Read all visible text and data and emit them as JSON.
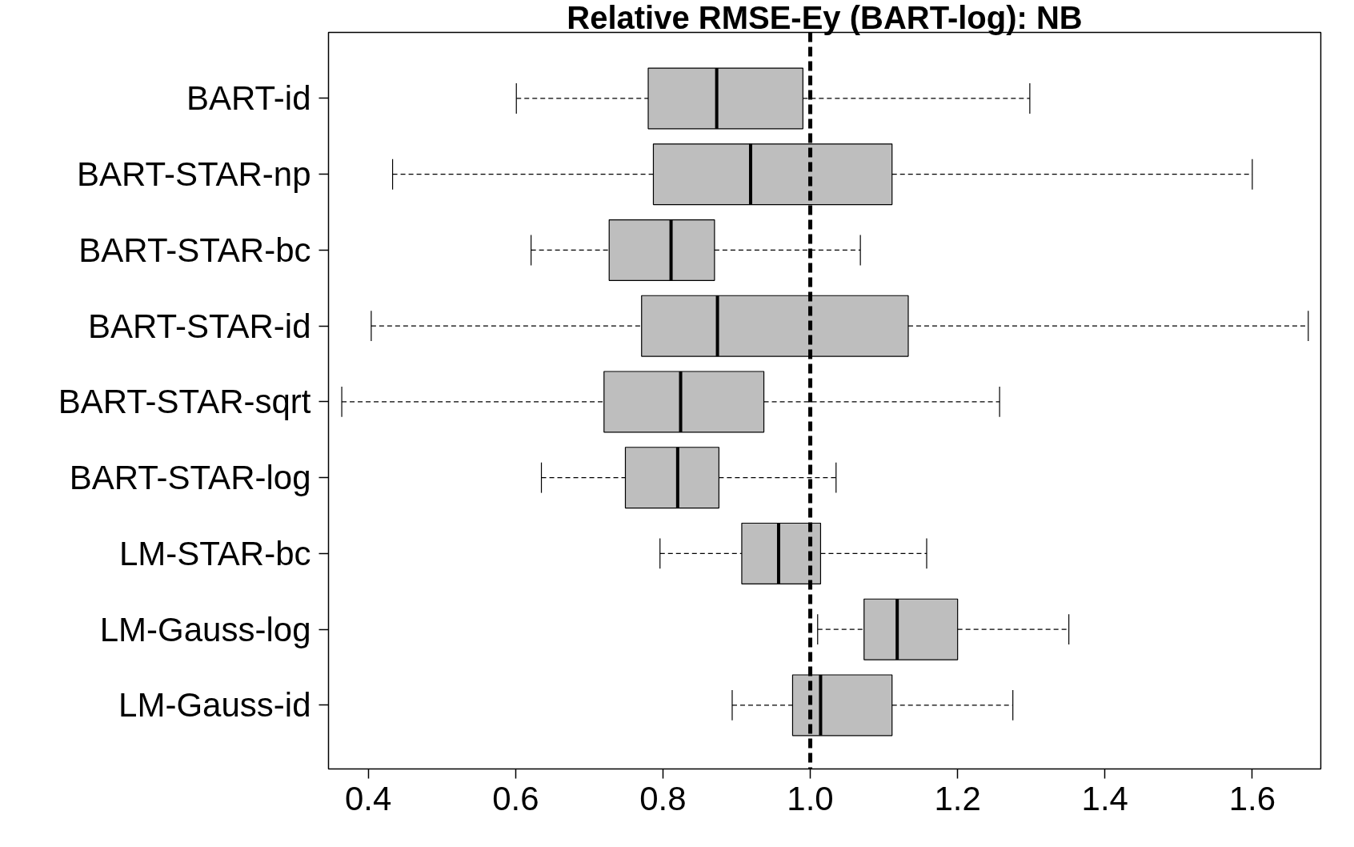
{
  "chart_data": {
    "type": "box",
    "title": "Relative RMSE-Ey (BART-log): NB",
    "orientation": "horizontal",
    "categories": [
      "BART-id",
      "BART-STAR-np",
      "BART-STAR-bc",
      "BART-STAR-id",
      "BART-STAR-sqrt",
      "BART-STAR-log",
      "LM-STAR-bc",
      "LM-Gauss-log",
      "LM-Gauss-id"
    ],
    "boxes": [
      {
        "low": 0.601,
        "q1": 0.78,
        "median": 0.873,
        "q3": 0.99,
        "high": 1.298
      },
      {
        "low": 0.433,
        "q1": 0.787,
        "median": 0.919,
        "q3": 1.111,
        "high": 1.6
      },
      {
        "low": 0.621,
        "q1": 0.727,
        "median": 0.811,
        "q3": 0.87,
        "high": 1.068
      },
      {
        "low": 0.404,
        "q1": 0.771,
        "median": 0.874,
        "q3": 1.133,
        "high": 1.676
      },
      {
        "low": 0.364,
        "q1": 0.72,
        "median": 0.824,
        "q3": 0.937,
        "high": 1.257
      },
      {
        "low": 0.635,
        "q1": 0.749,
        "median": 0.82,
        "q3": 0.876,
        "high": 1.035
      },
      {
        "low": 0.796,
        "q1": 0.907,
        "median": 0.957,
        "q3": 1.014,
        "high": 1.158
      },
      {
        "low": 1.01,
        "q1": 1.073,
        "median": 1.118,
        "q3": 1.2,
        "high": 1.351
      },
      {
        "low": 0.894,
        "q1": 0.976,
        "median": 1.014,
        "q3": 1.111,
        "high": 1.275
      }
    ],
    "color": "#bebebe",
    "xlim": [
      0.346,
      1.693
    ],
    "xticks": [
      {
        "value": 0.4,
        "label": "0.4"
      },
      {
        "value": 0.6,
        "label": "0.6"
      },
      {
        "value": 0.8,
        "label": "0.8"
      },
      {
        "value": 1.0,
        "label": "1.0"
      },
      {
        "value": 1.2,
        "label": "1.2"
      },
      {
        "value": 1.4,
        "label": "1.4"
      },
      {
        "value": 1.6,
        "label": "1.6"
      }
    ],
    "ref_lines": [
      {
        "axis": "x",
        "value": 1.0,
        "label": null,
        "line_style": "dashed",
        "color": "#000000"
      }
    ],
    "grid": false
  }
}
